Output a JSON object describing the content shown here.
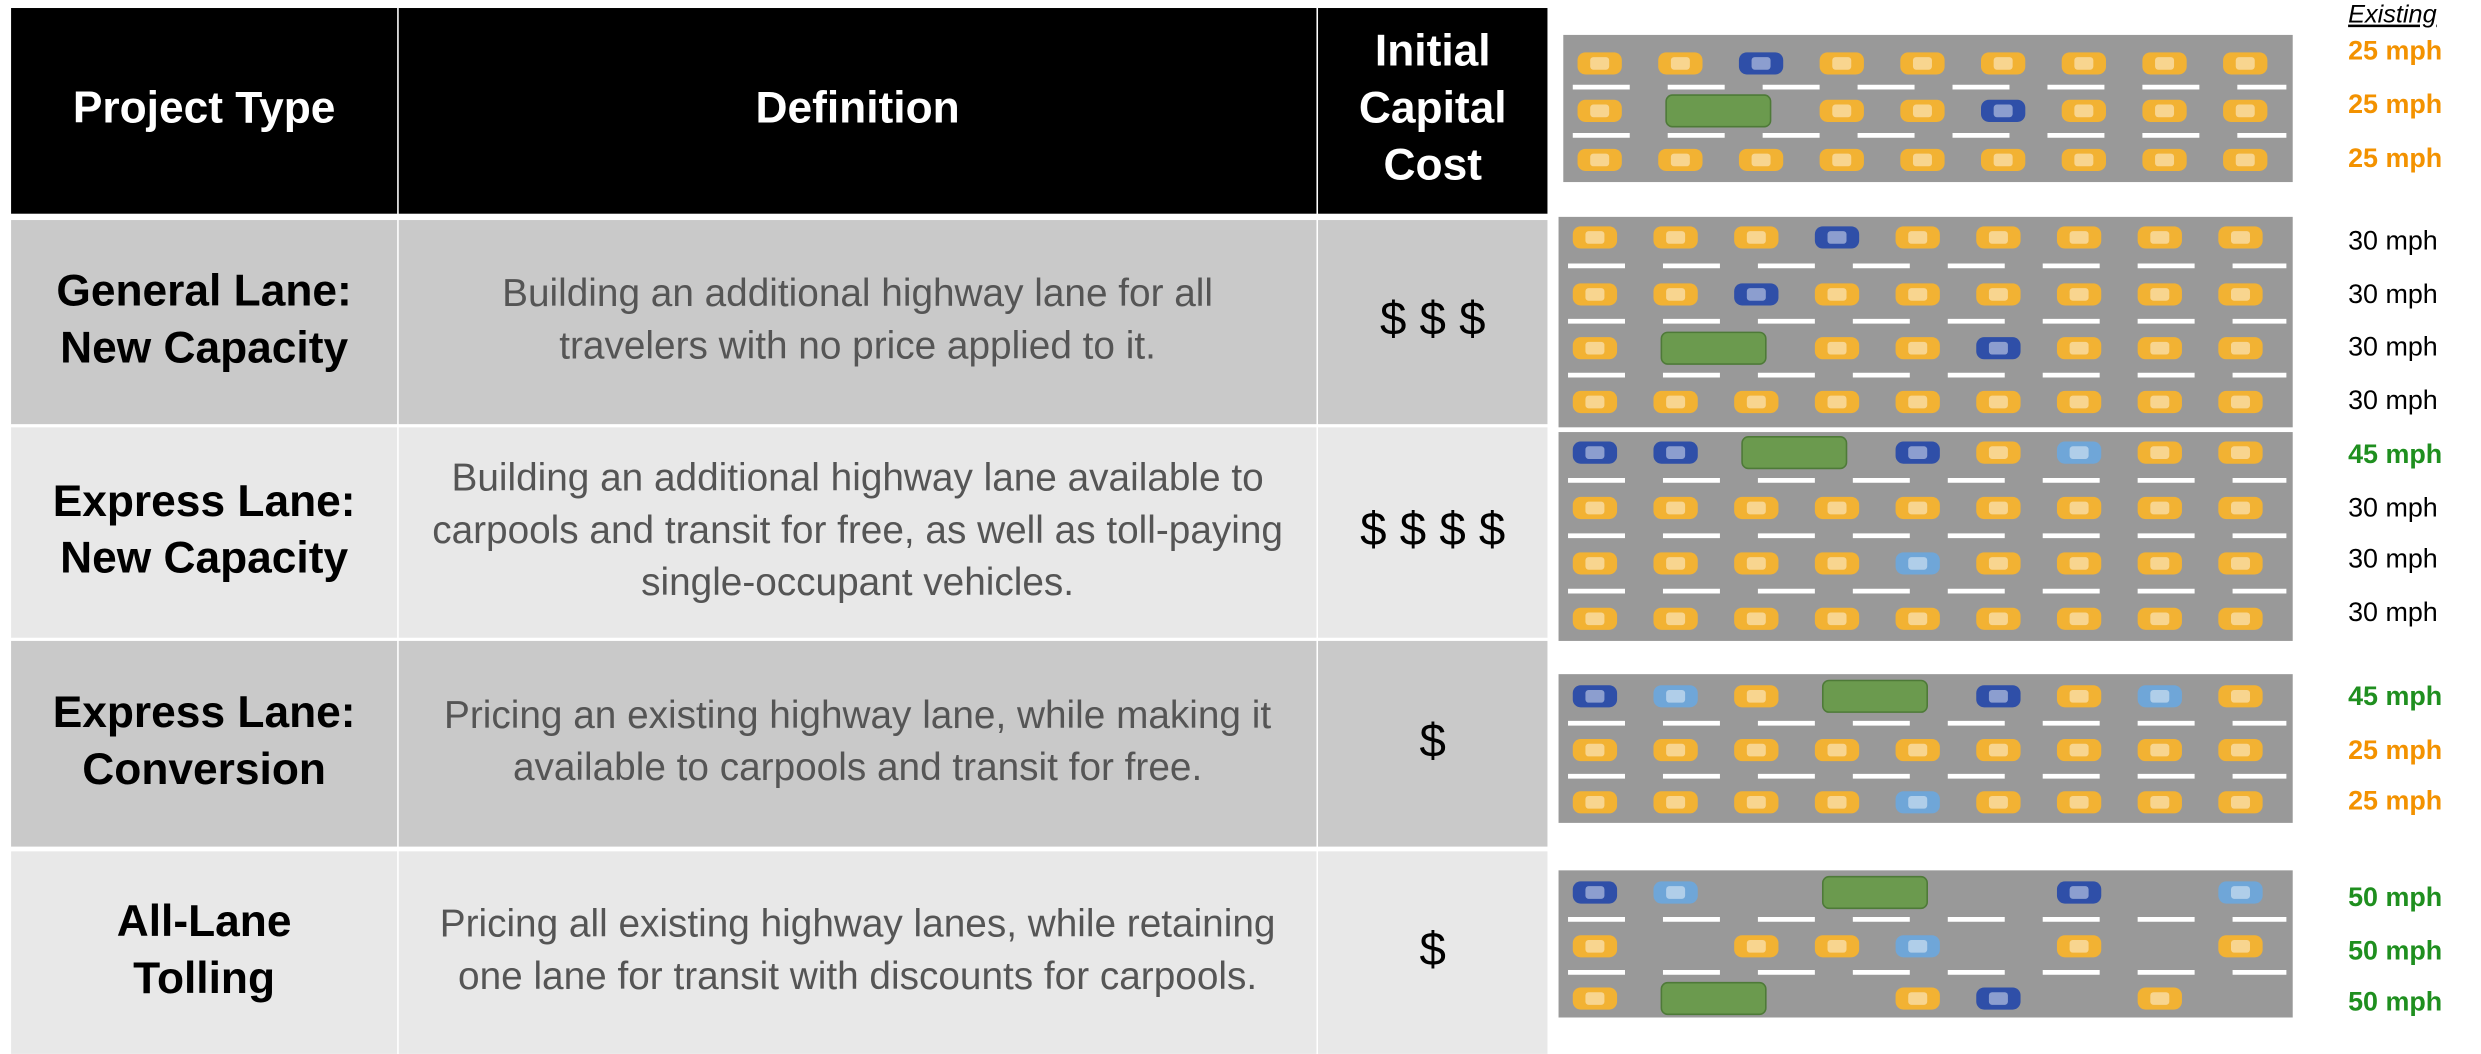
{
  "table": {
    "headers": [
      [
        "Project Type"
      ],
      [
        "Definition"
      ],
      [
        "Initial",
        "Capital",
        "Cost"
      ]
    ],
    "rows": [
      [
        [
          "General Lane:",
          "New Capacity"
        ],
        [
          "Building an additional highway lane for all",
          "travelers with no price applied to it."
        ],
        [
          "$ $ $"
        ]
      ],
      [
        [
          "Express Lane:",
          "New Capacity"
        ],
        [
          "Building an additional highway lane available to",
          "carpools and transit for free, as well as toll-paying",
          "single-occupant vehicles."
        ],
        [
          "$ $ $ $"
        ]
      ],
      [
        [
          "Express Lane:",
          "Conversion"
        ],
        [
          "Pricing an existing highway lane, while making it",
          "available to carpools and transit for free."
        ],
        [
          "$"
        ]
      ],
      [
        [
          "All-Lane",
          "Tolling"
        ],
        [
          "Pricing all existing highway lanes, while retaining",
          "one lane for transit with discounts for carpools."
        ],
        [
          "$"
        ]
      ]
    ]
  },
  "speeds": {
    "header": "Existing",
    "groups": [
      [
        {
          "label": "25 mph",
          "color": "#f39200"
        },
        {
          "label": "25 mph",
          "color": "#f39200"
        },
        {
          "label": "25 mph",
          "color": "#f39200"
        }
      ],
      [
        {
          "label": "30 mph",
          "color": "#000000"
        },
        {
          "label": "30 mph",
          "color": "#000000"
        },
        {
          "label": "30 mph",
          "color": "#000000"
        },
        {
          "label": "30 mph",
          "color": "#000000"
        }
      ],
      [
        {
          "label": "45 mph",
          "color": "#1f8f1f"
        },
        {
          "label": "30 mph",
          "color": "#000000"
        },
        {
          "label": "30 mph",
          "color": "#000000"
        },
        {
          "label": "30 mph",
          "color": "#000000"
        }
      ],
      [
        {
          "label": "45 mph",
          "color": "#1f8f1f"
        },
        {
          "label": "25 mph",
          "color": "#f39200"
        },
        {
          "label": "25 mph",
          "color": "#f39200"
        }
      ],
      [
        {
          "label": "50 mph",
          "color": "#1f8f1f"
        },
        {
          "label": "50 mph",
          "color": "#1f8f1f"
        },
        {
          "label": "50 mph",
          "color": "#1f8f1f"
        }
      ]
    ]
  }
}
